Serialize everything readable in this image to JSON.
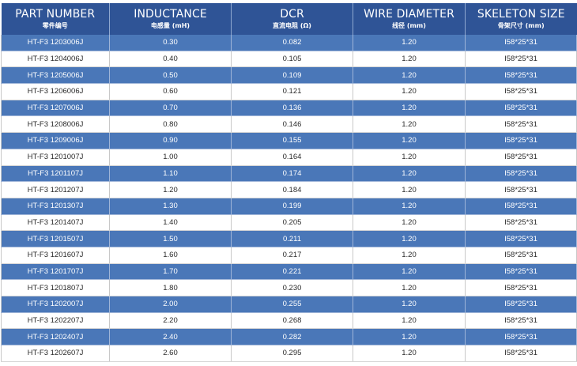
{
  "headers": [
    {
      "en": "PART NUMBER",
      "cn": "零件编号"
    },
    {
      "en": "INDUCTANCE",
      "cn": "电感量 (mH)"
    },
    {
      "en": "DCR",
      "cn": "直流电阻 (Ω)"
    },
    {
      "en": "WIRE DIAMETER",
      "cn": "线径 (mm)"
    },
    {
      "en": "SKELETON SIZE",
      "cn": "骨架尺寸 (mm)"
    }
  ],
  "rows": [
    [
      "HT-F3 1203006J",
      "0.30",
      "0.082",
      "1.20",
      "I58*25*31"
    ],
    [
      "HT-F3 1204006J",
      "0.40",
      "0.105",
      "1.20",
      "I58*25*31"
    ],
    [
      "HT-F3 1205006J",
      "0.50",
      "0.109",
      "1.20",
      "I58*25*31"
    ],
    [
      "HT-F3 1206006J",
      "0.60",
      "0.121",
      "1.20",
      "I58*25*31"
    ],
    [
      "HT-F3 1207006J",
      "0.70",
      "0.136",
      "1.20",
      "I58*25*31"
    ],
    [
      "HT-F3 1208006J",
      "0.80",
      "0.146",
      "1.20",
      "I58*25*31"
    ],
    [
      "HT-F3 1209006J",
      "0.90",
      "0.155",
      "1.20",
      "I58*25*31"
    ],
    [
      "HT-F3 1201007J",
      "1.00",
      "0.164",
      "1.20",
      "I58*25*31"
    ],
    [
      "HT-F3 1201107J",
      "1.10",
      "0.174",
      "1.20",
      "I58*25*31"
    ],
    [
      "HT-F3 1201207J",
      "1.20",
      "0.184",
      "1.20",
      "I58*25*31"
    ],
    [
      "HT-F3 1201307J",
      "1.30",
      "0.199",
      "1.20",
      "I58*25*31"
    ],
    [
      "HT-F3 1201407J",
      "1.40",
      "0.205",
      "1.20",
      "I58*25*31"
    ],
    [
      "HT-F3 1201507J",
      "1.50",
      "0.211",
      "1.20",
      "I58*25*31"
    ],
    [
      "HT-F3 1201607J",
      "1.60",
      "0.217",
      "1.20",
      "I58*25*31"
    ],
    [
      "HT-F3 1201707J",
      "1.70",
      "0.221",
      "1.20",
      "I58*25*31"
    ],
    [
      "HT-F3 1201807J",
      "1.80",
      "0.230",
      "1.20",
      "I58*25*31"
    ],
    [
      "HT-F3 1202007J",
      "2.00",
      "0.255",
      "1.20",
      "I58*25*31"
    ],
    [
      "HT-F3 1202207J",
      "2.20",
      "0.268",
      "1.20",
      "I58*25*31"
    ],
    [
      "HT-F3 1202407J",
      "2.40",
      "0.282",
      "1.20",
      "I58*25*31"
    ],
    [
      "HT-F3 1202607J",
      "2.60",
      "0.295",
      "1.20",
      "I58*25*31"
    ]
  ]
}
